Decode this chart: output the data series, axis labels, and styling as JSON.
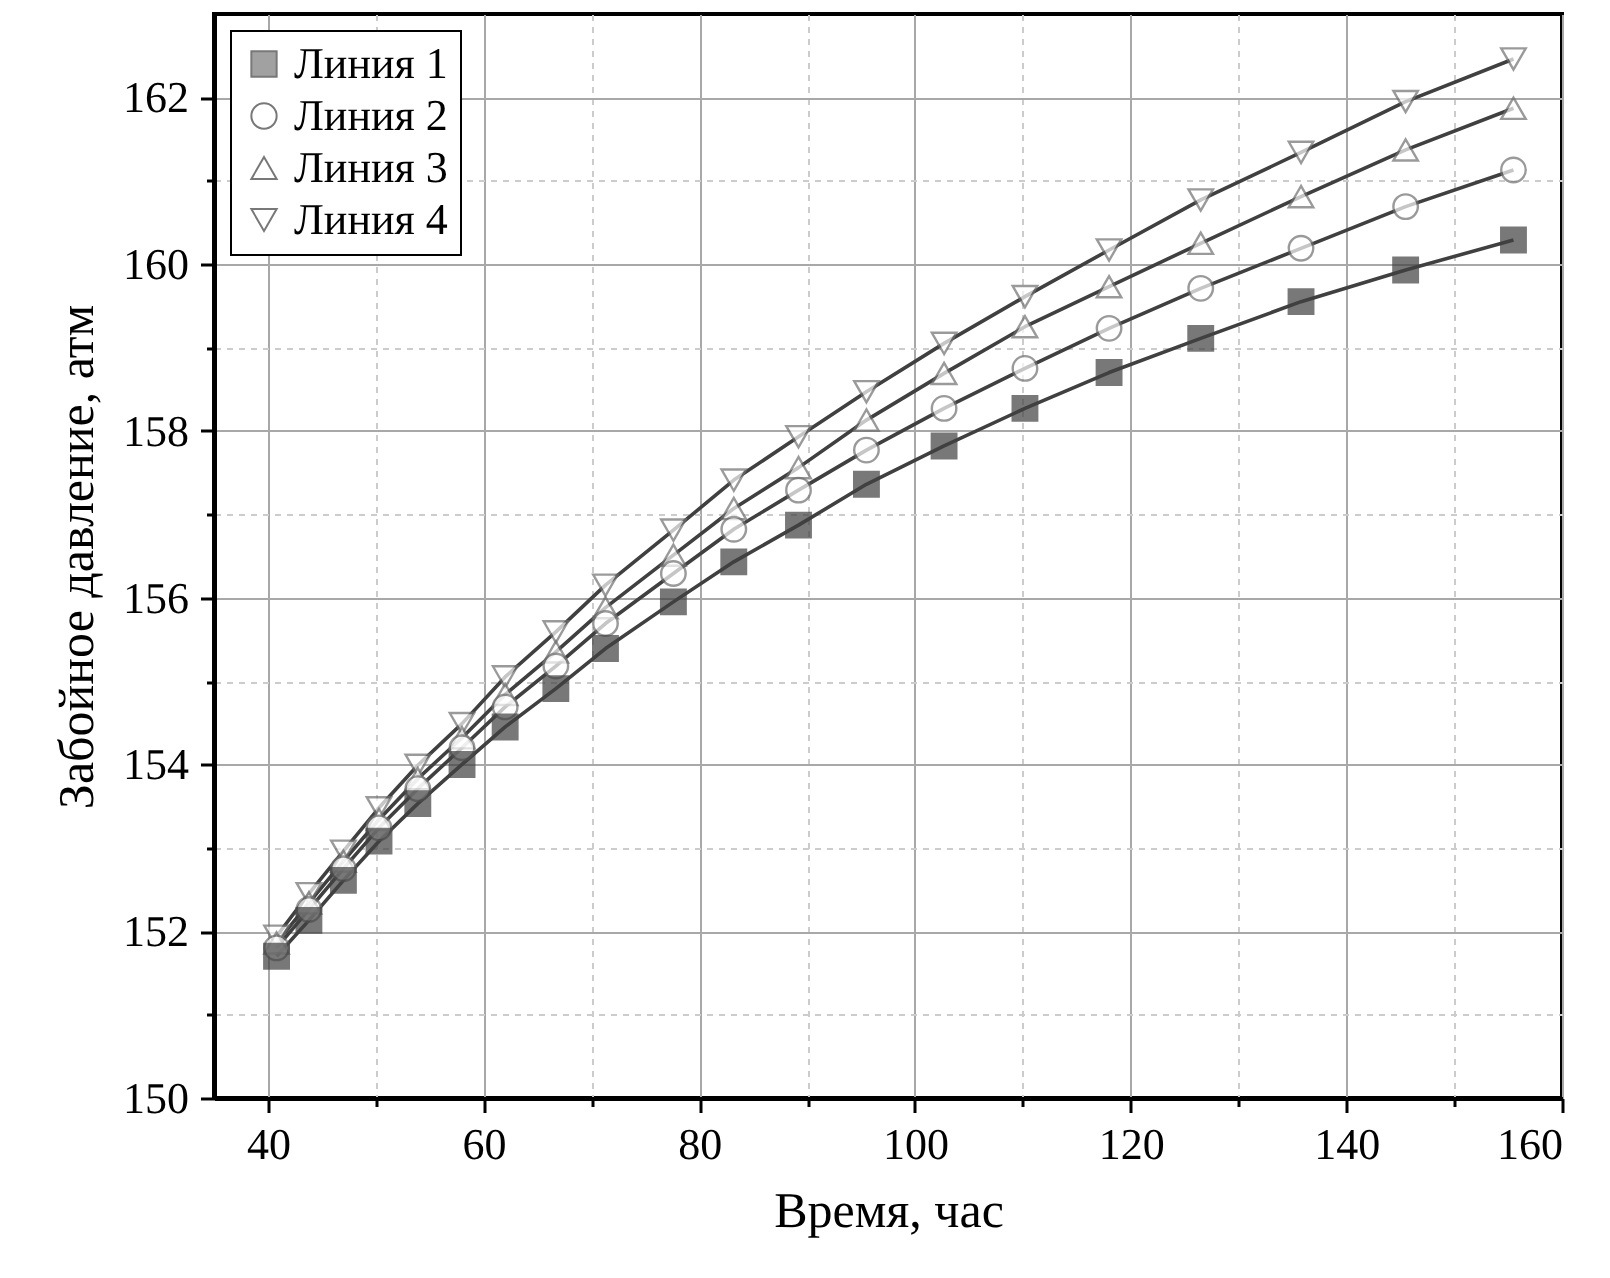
{
  "chart_data": {
    "type": "line",
    "xlabel": "Время, час",
    "ylabel": "Забойное давление, атм",
    "x": [
      40.8,
      43.8,
      47,
      50.3,
      53.9,
      58,
      62,
      66.7,
      71.3,
      77.6,
      83.2,
      89.2,
      95.5,
      102.7,
      110.2,
      118,
      126.5,
      135.8,
      145.5,
      155.5
    ],
    "series": [
      {
        "name": "Линия 1",
        "color": "#404040",
        "marker": "square",
        "values": [
          151.7,
          152.13,
          152.61,
          153.08,
          153.53,
          154.0,
          154.45,
          154.91,
          155.39,
          155.95,
          156.43,
          156.87,
          157.36,
          157.82,
          158.27,
          158.7,
          159.11,
          159.55,
          159.93,
          160.29
        ]
      },
      {
        "name": "Линия 2",
        "color": "#404040",
        "marker": "circle",
        "values": [
          151.8,
          152.26,
          152.75,
          153.24,
          153.71,
          154.2,
          154.69,
          155.18,
          155.69,
          156.29,
          156.82,
          157.29,
          157.77,
          158.27,
          158.75,
          159.23,
          159.71,
          160.19,
          160.69,
          161.13
        ]
      },
      {
        "name": "Линия 3",
        "color": "#404040",
        "marker": "triangle",
        "values": [
          151.86,
          152.34,
          152.84,
          153.34,
          153.83,
          154.32,
          154.84,
          155.35,
          155.88,
          156.51,
          157.07,
          157.56,
          158.13,
          158.69,
          159.25,
          159.73,
          160.25,
          160.81,
          161.37,
          161.87
        ]
      },
      {
        "name": "Линия 4",
        "color": "#404040",
        "marker": "triangle-down",
        "values": [
          151.94,
          152.45,
          152.96,
          153.48,
          153.99,
          154.49,
          155.05,
          155.59,
          156.15,
          156.81,
          157.41,
          157.93,
          158.47,
          159.05,
          159.61,
          160.17,
          160.77,
          161.34,
          161.95,
          162.46
        ]
      }
    ],
    "xlim": [
      35,
      160
    ],
    "xticks": [
      40,
      {
        "value": 50,
        "label": null
      },
      60,
      {
        "value": 70,
        "label": null
      },
      80,
      {
        "value": 90,
        "label": null
      },
      100,
      {
        "value": 110,
        "label": null
      },
      120,
      {
        "value": 130,
        "label": null
      },
      140,
      {
        "value": 150,
        "label": null
      },
      160
    ],
    "ylim": [
      150,
      163
    ],
    "yticks": [
      150,
      {
        "value": 151,
        "label": null
      },
      152,
      {
        "value": 153,
        "label": null
      },
      154,
      {
        "value": 155,
        "label": null
      },
      156,
      {
        "value": 157,
        "label": null
      },
      158,
      {
        "value": 159,
        "label": null
      },
      160,
      {
        "value": 161,
        "label": null
      },
      162
    ],
    "grid": true,
    "legend": "top left",
    "line_style": "solid"
  }
}
